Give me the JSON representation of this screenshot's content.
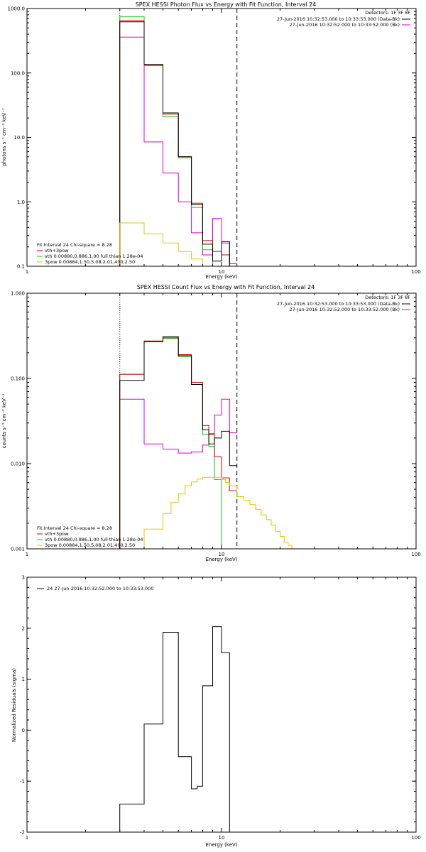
{
  "colors": {
    "data": "#000000",
    "total": "#d40000",
    "vth": "#16c816",
    "bpow": "#e8c200",
    "background": "#d400d4"
  },
  "chart_data": [
    {
      "id": "photon",
      "type": "line",
      "title": "SPEX HESSI Photon Flux vs Energy with Fit Function, Interval 24",
      "xlabel": "Energy (keV)",
      "ylabel": "photons s⁻¹ cm⁻² keV⁻¹",
      "xscale": "log",
      "yscale": "log",
      "xlim": [
        1,
        100
      ],
      "ylim": [
        0.1,
        1000
      ],
      "grid": false,
      "xticks": [
        {
          "v": 1,
          "label": "1"
        },
        {
          "v": 10,
          "label": "10"
        },
        {
          "v": 100,
          "label": "100"
        }
      ],
      "yticks": [
        {
          "v": 0.1,
          "label": "0.1"
        },
        {
          "v": 1,
          "label": "1.0"
        },
        {
          "v": 10,
          "label": "10.0"
        },
        {
          "v": 100,
          "label": "100.0"
        },
        {
          "v": 1000,
          "label": "1000.0"
        }
      ],
      "vlines": [
        {
          "x": 3.0,
          "style": "dotted"
        },
        {
          "x": 12.0,
          "style": "dashed"
        }
      ],
      "info": {
        "detectors": "Detectors: 1F 3F 8F",
        "lines": [
          {
            "text": "27-Jun-2016 10:32:53.000 to 10:33:53.000 (Data-Bk)",
            "color": "#000000"
          },
          {
            "text": "27-Jun-2016 10:32:52.000 to 10:33:52.000 (Bk)",
            "color": "#d400d4"
          }
        ]
      },
      "legend": {
        "header": "Fit Interval 24   Chi-square = 8.28",
        "items": [
          {
            "text": "vth+3pow",
            "color": "#d40000"
          },
          {
            "text": "vth 0.00880,0.886,1.00  full thian 1.28e-04",
            "color": "#16c816"
          },
          {
            "text": "3pow 0.00884,1.50,5.08,2.01,400,2.50",
            "color": "#e8c200"
          }
        ]
      },
      "edges": [
        3.0,
        4.0,
        5.0,
        6.0,
        7.0,
        8.0,
        9.0,
        10.0,
        11.0,
        12.0
      ],
      "series": [
        {
          "role": "background",
          "color": "#d400d4",
          "values": [
            360,
            8.5,
            2.8,
            1.0,
            0.33,
            0.15,
            0.55,
            0.23,
            0.1
          ]
        },
        {
          "role": "vth",
          "color": "#16c816",
          "values": [
            750,
            130,
            21,
            4.8,
            0.82,
            0.18,
            0.1,
            0.1,
            0.1
          ]
        },
        {
          "role": "total",
          "color": "#d40000",
          "values": [
            650,
            133,
            23,
            5.0,
            0.95,
            0.25,
            0.17,
            0.15,
            0.11
          ]
        },
        {
          "role": "data",
          "color": "#000000",
          "values": [
            620,
            135,
            24,
            5.0,
            0.9,
            0.22,
            0.12,
            0.24,
            0.1
          ]
        },
        {
          "role": "bpow",
          "color": "#e8c200",
          "values": [
            0.47,
            0.32,
            0.23,
            0.17,
            0.13,
            0.1,
            0.1,
            0.1,
            0.1
          ]
        }
      ]
    },
    {
      "id": "count",
      "type": "line",
      "title": "SPEX HESSI Count Flux vs Energy with Fit Function, Interval 24",
      "xlabel": "Energy (keV)",
      "ylabel": "counts s⁻¹ cm⁻² keV⁻¹",
      "xscale": "log",
      "yscale": "log",
      "xlim": [
        1,
        100
      ],
      "ylim": [
        0.001,
        1
      ],
      "grid": false,
      "xticks": [
        {
          "v": 1,
          "label": "1"
        },
        {
          "v": 10,
          "label": "10"
        },
        {
          "v": 100,
          "label": "100"
        }
      ],
      "yticks": [
        {
          "v": 0.001,
          "label": "0.001"
        },
        {
          "v": 0.01,
          "label": "0.010"
        },
        {
          "v": 0.1,
          "label": "0.100"
        },
        {
          "v": 1,
          "label": "1.000"
        }
      ],
      "vlines": [
        {
          "x": 3.0,
          "style": "dotted"
        },
        {
          "x": 12.0,
          "style": "dashed"
        }
      ],
      "info": {
        "detectors": "Detectors: 1F 3F 8F",
        "lines": [
          {
            "text": "27-Jun-2016 10:32:53.000 to 10:33:53.000 (Data-Bk)",
            "color": "#000000"
          },
          {
            "text": "27-Jun-2016 10:32:52.000 to 10:33:52.000 (Bk)",
            "color": "#d400d4"
          }
        ]
      },
      "legend": {
        "header": "Fit Interval 24   Chi-square = 8.28",
        "items": [
          {
            "text": "vth+3pow",
            "color": "#d40000"
          },
          {
            "text": "vth 0.00880,0.886,1.00  full thian 1.28e-04",
            "color": "#16c816"
          },
          {
            "text": "3pow 0.00884,1.50,5.08,2.01,400,2.50",
            "color": "#e8c200"
          }
        ]
      },
      "edges": [
        3.0,
        4.0,
        5.0,
        6.0,
        7.0,
        8.0,
        9.0,
        10.0,
        11.0,
        12.0
      ],
      "series": [
        {
          "role": "background",
          "edges": [
            3.0,
            4.0,
            5.0,
            6.0,
            7.0,
            8.0,
            8.6,
            9.2,
            10.0,
            11.0,
            12.0
          ],
          "color": "#d400d4",
          "values": [
            0.057,
            0.017,
            0.0148,
            0.0133,
            0.0137,
            0.0165,
            0.0225,
            0.037,
            0.057,
            0.023
          ]
        },
        {
          "role": "vth",
          "edges": [
            3.0,
            4.0,
            5.0,
            6.0,
            7.0,
            8.0,
            8.6,
            9.2,
            10.0,
            11.0,
            12.0
          ],
          "color": "#16c816",
          "values": [
            0.112,
            0.27,
            0.295,
            0.18,
            0.085,
            0.022,
            0.016,
            0.0065,
            0.001,
            0.001
          ]
        },
        {
          "role": "total",
          "edges": [
            3.0,
            4.0,
            5.0,
            6.0,
            7.0,
            8.0,
            8.6,
            9.2,
            10.0,
            11.0,
            12.0
          ],
          "color": "#d40000",
          "values": [
            0.112,
            0.275,
            0.3,
            0.19,
            0.09,
            0.028,
            0.022,
            0.012,
            0.0068,
            0.0048
          ]
        },
        {
          "role": "data",
          "edges": [
            3.0,
            4.0,
            5.0,
            6.0,
            7.0,
            8.0,
            8.6,
            9.2,
            10.0,
            11.0,
            12.0
          ],
          "color": "#000000",
          "values": [
            0.095,
            0.27,
            0.31,
            0.185,
            0.085,
            0.025,
            0.017,
            0.02,
            0.024,
            0.0095
          ]
        },
        {
          "role": "bpow",
          "edges": [
            3.0,
            4.0,
            5.0,
            5.5,
            6.0,
            6.5,
            7.0,
            7.5,
            8.0,
            9.0,
            10.0,
            10.5,
            11.0,
            12.0,
            13.0,
            14.0,
            15.0,
            16.0,
            17.0,
            18.0,
            19.0,
            20.0,
            21.0,
            22.0,
            23.0,
            24.0,
            25.0
          ],
          "color": "#e8c200",
          "values": [
            0.001,
            0.0017,
            0.0026,
            0.0035,
            0.0044,
            0.0055,
            0.0061,
            0.0066,
            0.0069,
            0.0069,
            0.0065,
            0.006,
            0.0055,
            0.0041,
            0.0037,
            0.0033,
            0.0029,
            0.0025,
            0.0022,
            0.0019,
            0.0016,
            0.0014,
            0.0012,
            0.0011,
            0.001,
            0.001
          ]
        }
      ]
    },
    {
      "id": "residuals",
      "type": "line",
      "title": "",
      "xlabel": "Energy (keV)",
      "ylabel": "Normalized Residuals (sigma)",
      "xscale": "log",
      "yscale": "linear",
      "xlim": [
        1,
        100
      ],
      "ylim": [
        -2,
        3
      ],
      "grid": false,
      "xticks": [
        {
          "v": 1,
          "label": "1"
        },
        {
          "v": 10,
          "label": "10"
        },
        {
          "v": 100,
          "label": "100"
        }
      ],
      "yticks": [
        {
          "v": -2,
          "label": "-2"
        },
        {
          "v": -1,
          "label": "-1"
        },
        {
          "v": 0,
          "label": "0"
        },
        {
          "v": 1,
          "label": "1"
        },
        {
          "v": 2,
          "label": "2"
        },
        {
          "v": 3,
          "label": "3"
        }
      ],
      "legend": {
        "items": [
          {
            "text": "24  27-Jun-2016 10:32:52.000 to 10:33:53.000",
            "color": "#000000"
          }
        ]
      },
      "edges": [
        3.0,
        4.0,
        5.0,
        6.0,
        7.0,
        7.5,
        8.0,
        9.0,
        10.0,
        11.0,
        12.0
      ],
      "series": [
        {
          "role": "residuals",
          "color": "#000000",
          "values": [
            -1.45,
            0.12,
            1.92,
            -0.52,
            -1.15,
            -1.1,
            0.87,
            2.03,
            1.52,
            -2
          ]
        }
      ]
    }
  ]
}
